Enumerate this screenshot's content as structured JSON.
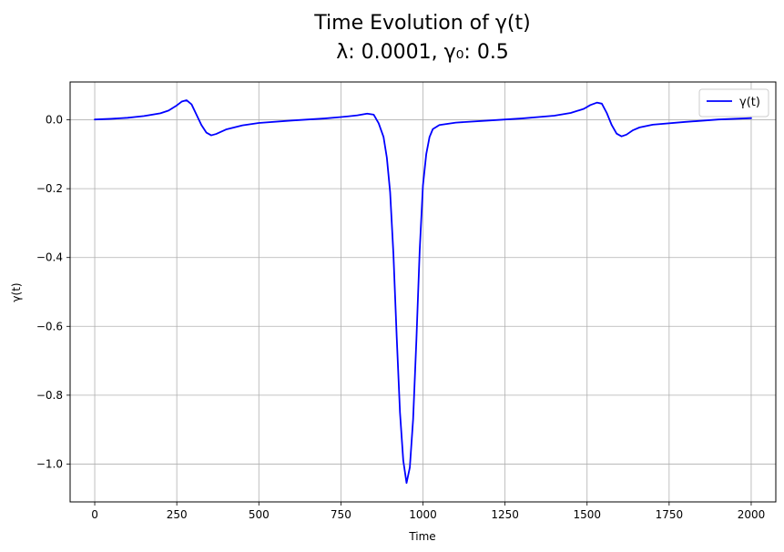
{
  "chart_data": {
    "type": "line",
    "title_line1": "Time Evolution of γ(t)",
    "title_line2": "λ: 0.0001, γ₀: 0.5",
    "xlabel": "Time",
    "ylabel": "γ(t)",
    "xlim": [
      -75,
      2075
    ],
    "ylim": [
      -1.11,
      0.11
    ],
    "xticks": [
      0,
      250,
      500,
      750,
      1000,
      1250,
      1500,
      1750,
      2000
    ],
    "xtick_labels": [
      "0",
      "250",
      "500",
      "750",
      "1000",
      "1250",
      "1500",
      "1750",
      "2000"
    ],
    "yticks": [
      0.0,
      -0.2,
      -0.4,
      -0.6,
      -0.8,
      -1.0
    ],
    "ytick_labels": [
      "0.0",
      "−0.2",
      "−0.4",
      "−0.6",
      "−0.8",
      "−1.0"
    ],
    "grid": true,
    "legend_position": "top-right",
    "series": [
      {
        "name": "γ(t)",
        "color": "#0000ff",
        "x": [
          0,
          50,
          100,
          150,
          200,
          225,
          250,
          265,
          280,
          295,
          310,
          325,
          340,
          355,
          370,
          400,
          450,
          500,
          600,
          700,
          750,
          800,
          830,
          850,
          865,
          880,
          890,
          900,
          910,
          920,
          930,
          940,
          950,
          960,
          970,
          980,
          990,
          1000,
          1010,
          1020,
          1030,
          1050,
          1100,
          1200,
          1300,
          1400,
          1450,
          1490,
          1510,
          1530,
          1545,
          1560,
          1575,
          1590,
          1605,
          1620,
          1640,
          1660,
          1700,
          1800,
          1900,
          2000
        ],
        "y": [
          0.001,
          0.003,
          0.006,
          0.011,
          0.019,
          0.027,
          0.042,
          0.053,
          0.057,
          0.045,
          0.015,
          -0.015,
          -0.037,
          -0.045,
          -0.041,
          -0.028,
          -0.016,
          -0.009,
          -0.002,
          0.004,
          0.008,
          0.013,
          0.018,
          0.015,
          -0.01,
          -0.05,
          -0.11,
          -0.21,
          -0.39,
          -0.63,
          -0.85,
          -0.99,
          -1.055,
          -1.01,
          -0.87,
          -0.64,
          -0.38,
          -0.19,
          -0.1,
          -0.05,
          -0.027,
          -0.015,
          -0.008,
          -0.002,
          0.004,
          0.012,
          0.02,
          0.032,
          0.043,
          0.05,
          0.047,
          0.02,
          -0.015,
          -0.04,
          -0.048,
          -0.043,
          -0.03,
          -0.022,
          -0.014,
          -0.006,
          0.001,
          0.005
        ]
      }
    ]
  }
}
